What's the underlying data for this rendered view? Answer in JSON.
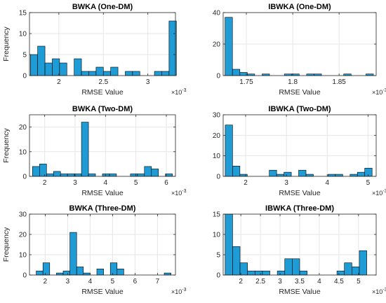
{
  "chart_data": [
    {
      "type": "bar",
      "title": "BWKA (One-DM)",
      "xlabel": "RMSE Value",
      "ylabel": "Frequency",
      "x_exponent": "×10",
      "x_exponent_power": "-3",
      "xlim": [
        1.67,
        3.31
      ],
      "ylim": [
        0,
        15
      ],
      "xticks": [
        2,
        2.5,
        3
      ],
      "yticks": [
        0,
        5,
        10,
        15
      ],
      "xtick_labels": [
        "2",
        "2.5",
        "3"
      ],
      "ytick_labels": [
        "0",
        "5",
        "10",
        "15"
      ],
      "bin_edges": [
        1.68,
        1.762,
        1.844,
        1.926,
        2.008,
        2.09,
        2.172,
        2.254,
        2.336,
        2.418,
        2.5,
        2.582,
        2.664,
        2.746,
        2.828,
        2.91,
        2.992,
        3.074,
        3.156,
        3.238,
        3.32
      ],
      "counts": [
        5,
        7,
        3,
        4,
        3,
        0,
        4,
        1,
        1,
        2,
        1,
        2,
        0,
        1,
        1,
        0,
        0,
        1,
        1,
        13
      ],
      "grid": true,
      "bar_color": "#1f9bd6"
    },
    {
      "type": "bar",
      "title": "IBWKA (One-DM)",
      "xlabel": "RMSE Value",
      "ylabel": "",
      "x_exponent": "×10",
      "x_exponent_power": "-3",
      "xlim": [
        1.725,
        1.89
      ],
      "ylim": [
        0,
        40
      ],
      "xticks": [
        1.75,
        1.8,
        1.85
      ],
      "yticks": [
        0,
        20,
        40
      ],
      "xtick_labels": [
        "1.75",
        "1.8",
        "1.85"
      ],
      "ytick_labels": [
        "0",
        "20",
        "40"
      ],
      "bin_edges": [
        1.727,
        1.735,
        1.743,
        1.751,
        1.759,
        1.767,
        1.775,
        1.783,
        1.791,
        1.799,
        1.807,
        1.815,
        1.823,
        1.831,
        1.839,
        1.847,
        1.855,
        1.863,
        1.871,
        1.879,
        1.887
      ],
      "counts": [
        37,
        4,
        2,
        1,
        0,
        1,
        0,
        0,
        1,
        1,
        0,
        1,
        1,
        0,
        0,
        0,
        1,
        0,
        0,
        1
      ],
      "grid": true,
      "bar_color": "#1f9bd6"
    },
    {
      "type": "bar",
      "title": "BWKA (Two-DM)",
      "xlabel": "RMSE Value",
      "ylabel": "Frequency",
      "x_exponent": "×10",
      "x_exponent_power": "-3",
      "xlim": [
        1.5,
        6.3
      ],
      "ylim": [
        0,
        25
      ],
      "xticks": [
        2,
        3,
        4,
        5,
        6
      ],
      "yticks": [
        0,
        10,
        20
      ],
      "xtick_labels": [
        "2",
        "3",
        "4",
        "5",
        "6"
      ],
      "ytick_labels": [
        "0",
        "10",
        "20"
      ],
      "bin_edges": [
        1.6,
        1.83,
        2.06,
        2.29,
        2.52,
        2.75,
        2.98,
        3.21,
        3.44,
        3.67,
        3.9,
        4.13,
        4.36,
        4.59,
        4.82,
        5.05,
        5.28,
        5.51,
        5.74,
        5.97,
        6.2
      ],
      "counts": [
        4,
        5,
        1,
        2,
        1,
        1,
        1,
        22,
        1,
        0,
        1,
        1,
        0,
        0,
        1,
        1,
        4,
        3,
        0,
        1
      ],
      "grid": true,
      "bar_color": "#1f9bd6"
    },
    {
      "type": "bar",
      "title": "IBWKA (Two-DM)",
      "xlabel": "RMSE Value",
      "ylabel": "",
      "x_exponent": "×10",
      "x_exponent_power": "-3",
      "xlim": [
        1.45,
        5.2
      ],
      "ylim": [
        0,
        30
      ],
      "xticks": [
        2,
        3,
        4,
        5
      ],
      "yticks": [
        0,
        10,
        20,
        30
      ],
      "xtick_labels": [
        "2",
        "3",
        "4",
        "5"
      ],
      "ytick_labels": [
        "0",
        "10",
        "20",
        "30"
      ],
      "bin_edges": [
        1.5,
        1.68,
        1.86,
        2.04,
        2.22,
        2.4,
        2.58,
        2.76,
        2.94,
        3.12,
        3.3,
        3.48,
        3.66,
        3.84,
        4.02,
        4.2,
        4.38,
        4.56,
        4.74,
        4.92,
        5.1
      ],
      "counts": [
        25,
        5,
        1,
        0,
        0,
        0,
        3,
        1,
        2,
        0,
        3,
        1,
        0,
        0,
        1,
        1,
        0,
        1,
        2,
        4
      ],
      "grid": true,
      "bar_color": "#1f9bd6"
    },
    {
      "type": "bar",
      "title": "BWKA (Three-DM)",
      "xlabel": "RMSE Value",
      "ylabel": "Frequency",
      "x_exponent": "×10",
      "x_exponent_power": "-3",
      "xlim": [
        1.3,
        7.8
      ],
      "ylim": [
        0,
        30
      ],
      "xticks": [
        2,
        3,
        4,
        5,
        6,
        7
      ],
      "yticks": [
        0,
        10,
        20,
        30
      ],
      "xtick_labels": [
        "2",
        "3",
        "4",
        "5",
        "6",
        "7"
      ],
      "ytick_labels": [
        "0",
        "10",
        "20",
        "30"
      ],
      "bin_edges": [
        1.6,
        1.9,
        2.2,
        2.5,
        2.8,
        3.1,
        3.4,
        3.7,
        4.0,
        4.3,
        4.6,
        4.9,
        5.2,
        5.5,
        5.8,
        6.1,
        6.4,
        6.7,
        7.0,
        7.3,
        7.6
      ],
      "counts": [
        2,
        6,
        0,
        1,
        2,
        21,
        4,
        1,
        0,
        3,
        0,
        6,
        3,
        0,
        0,
        0,
        0,
        0,
        0,
        1
      ],
      "grid": true,
      "bar_color": "#1f9bd6"
    },
    {
      "type": "bar",
      "title": "IBWKA (Three-DM)",
      "xlabel": "RMSE Value",
      "ylabel": "",
      "x_exponent": "×10",
      "x_exponent_power": "-3",
      "xlim": [
        1.55,
        5.45
      ],
      "ylim": [
        0,
        15
      ],
      "xticks": [
        2,
        2.5,
        3,
        3.5,
        4,
        4.5,
        5
      ],
      "yticks": [
        0,
        5,
        10,
        15
      ],
      "xtick_labels": [
        "2",
        "2.5",
        "3",
        "3.5",
        "4",
        "4.5",
        "5"
      ],
      "ytick_labels": [
        "0",
        "5",
        "10",
        "15"
      ],
      "bin_edges": [
        1.6,
        1.79,
        1.98,
        2.17,
        2.36,
        2.55,
        2.74,
        2.93,
        3.12,
        3.31,
        3.5,
        3.69,
        3.88,
        4.07,
        4.26,
        4.45,
        4.64,
        4.83,
        5.02,
        5.21,
        5.4
      ],
      "counts": [
        15,
        7,
        3,
        1,
        1,
        1,
        0,
        1,
        4,
        4,
        1,
        0,
        0,
        0,
        0,
        1,
        3,
        2,
        6,
        0
      ],
      "grid": true,
      "bar_color": "#1f9bd6"
    }
  ]
}
